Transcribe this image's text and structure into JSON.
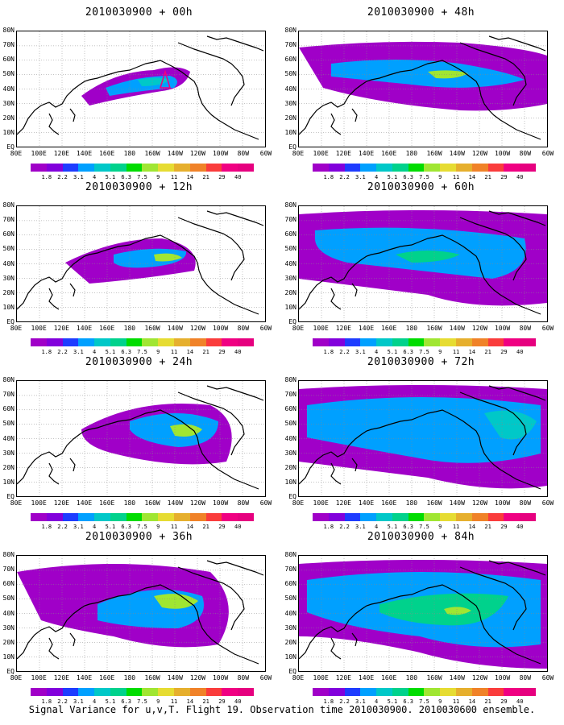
{
  "panels": [
    {
      "title": "2010030900 + 00h"
    },
    {
      "title": "2010030900 + 48h"
    },
    {
      "title": "2010030900 + 12h"
    },
    {
      "title": "2010030900 + 60h"
    },
    {
      "title": "2010030900 + 24h"
    },
    {
      "title": "2010030900 + 72h"
    },
    {
      "title": "2010030900 + 36h"
    },
    {
      "title": "2010030900 + 84h"
    }
  ],
  "lat_labels": [
    "80N",
    "70N",
    "60N",
    "50N",
    "40N",
    "30N",
    "20N",
    "10N",
    "EQ"
  ],
  "lon_labels": [
    "80E",
    "100E",
    "120E",
    "140E",
    "160E",
    "180",
    "160W",
    "140W",
    "120W",
    "100W",
    "80W",
    "60W"
  ],
  "colorbar": {
    "ticks": [
      "1.8",
      "2.2",
      "3.1",
      "4",
      "5.1",
      "6.3",
      "7.5",
      "9",
      "11",
      "14",
      "21",
      "29",
      "40"
    ],
    "colors": [
      "#a000c8",
      "#8200dc",
      "#1e3cff",
      "#00a0ff",
      "#00c8c8",
      "#00d28c",
      "#00dc00",
      "#a0e632",
      "#e6dc32",
      "#e6af2d",
      "#f08228",
      "#fa3c3c",
      "#f00082",
      "#e6007f"
    ]
  },
  "footer": "Signal Variance for u,v,T. Flight 19. Observation time 2010030900. 2010030600 ensemble."
}
